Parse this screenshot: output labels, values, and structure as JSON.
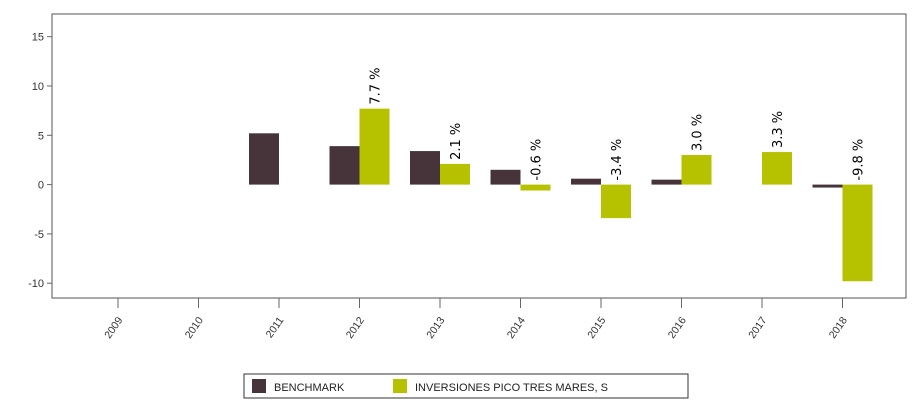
{
  "chart_data": {
    "type": "bar",
    "categories": [
      "2009",
      "2010",
      "2011",
      "2012",
      "2013",
      "2014",
      "2015",
      "2016",
      "2017",
      "2018"
    ],
    "series": [
      {
        "name": "BENCHMARK",
        "color": "#46343a",
        "values": [
          null,
          null,
          5.2,
          3.9,
          3.4,
          1.5,
          0.6,
          0.5,
          null,
          -0.3
        ]
      },
      {
        "name": "INVERSIONES PICO TRES MARES, S",
        "color": "#b6c200",
        "values": [
          null,
          null,
          null,
          7.7,
          2.1,
          -0.6,
          -3.4,
          3.0,
          3.3,
          -9.8
        ],
        "labels": [
          "",
          "",
          "",
          "7.7 %",
          "2.1 %",
          "-0.6 %",
          "-3.4 %",
          "3.0 %",
          "3.3 %",
          "-9.8 %"
        ]
      }
    ],
    "ylim": [
      -11.5,
      17.3
    ],
    "yticks": [
      -10,
      -5,
      0,
      5,
      10,
      15
    ],
    "grid": false,
    "legend_position": "bottom"
  }
}
